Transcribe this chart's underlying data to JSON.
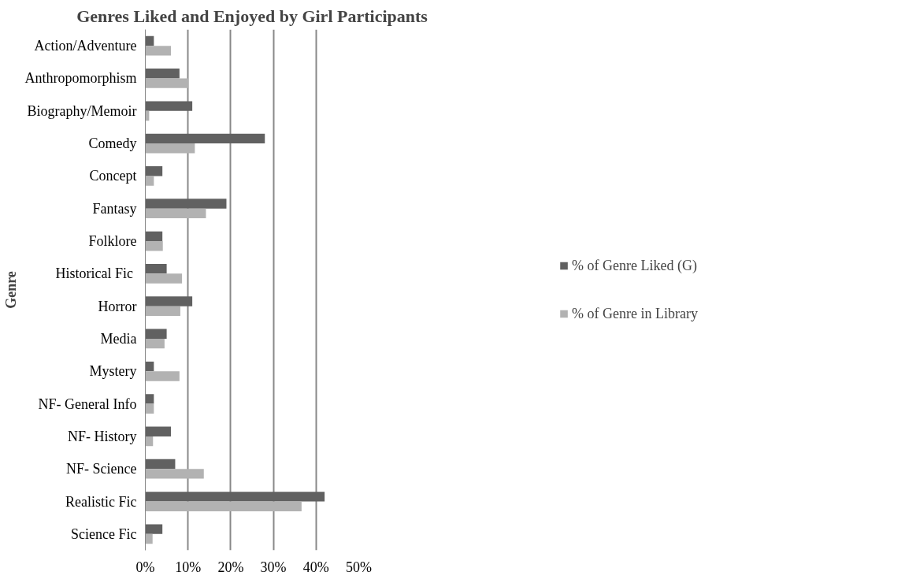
{
  "chart_data": {
    "type": "bar",
    "orientation": "horizontal",
    "title": "Genres Liked and Enjoyed by Girl Participants",
    "ylabel": "Genre",
    "categories": [
      "Action/Adventure",
      "Anthropomorphism",
      "Biography/Memoir",
      "Comedy",
      "Concept",
      "Fantasy",
      "Folklore",
      "Historical  Fic",
      "Horror",
      "Media",
      "Mystery",
      "NF- General Info",
      "NF- History",
      "NF- Science",
      "Realistic Fic",
      "Science Fic"
    ],
    "series": [
      {
        "name": "% of Genre Liked (G)",
        "color": "#616161",
        "values": [
          2,
          8,
          11,
          28,
          4,
          19,
          4,
          5,
          11,
          5,
          2,
          2,
          6,
          7,
          42,
          4
        ]
      },
      {
        "name": "% of Genre in Library",
        "color": "#b2b2b2",
        "values": [
          6,
          10.1,
          0.9,
          11.6,
          2,
          14.2,
          4.1,
          8.6,
          8.2,
          4.5,
          8,
          2,
          1.8,
          13.7,
          36.6,
          1.7
        ]
      }
    ],
    "xlim": [
      0,
      50
    ],
    "xticks": [
      {
        "value": 0,
        "label": "0%"
      },
      {
        "value": 10,
        "label": "10%"
      },
      {
        "value": 20,
        "label": "20%"
      },
      {
        "value": 30,
        "label": "30%"
      },
      {
        "value": 40,
        "label": "40%"
      },
      {
        "value": 50,
        "label": "50%"
      }
    ],
    "grid": "x",
    "legend": "right"
  }
}
